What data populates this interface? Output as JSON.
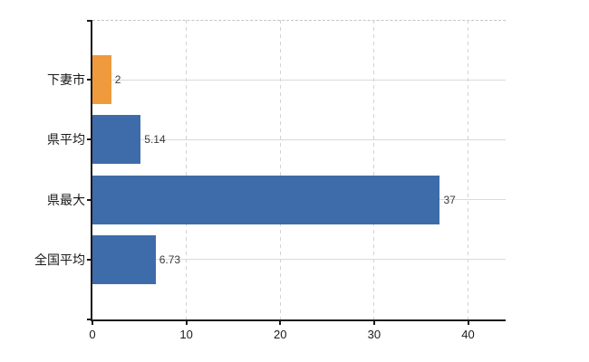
{
  "chart_data": {
    "type": "bar",
    "orientation": "horizontal",
    "title": "",
    "xlabel": "",
    "ylabel": "",
    "categories": [
      "下妻市",
      "県平均",
      "県最大",
      "全国平均"
    ],
    "values": [
      2,
      5.14,
      37,
      6.73
    ],
    "value_labels": [
      "2",
      "5.14",
      "37",
      "6.73"
    ],
    "bar_colors": [
      "#ee9a3d",
      "#3e6caa",
      "#3e6caa",
      "#3e6caa"
    ],
    "xlim": [
      0,
      44
    ],
    "xticks": [
      0,
      10,
      20,
      30,
      40
    ],
    "xtick_labels": [
      "0",
      "10",
      "20",
      "30",
      "40"
    ],
    "grid": {
      "vertical": "dashed",
      "horizontal": "solid",
      "top_border": "dashed"
    },
    "legend": null
  },
  "colors": {
    "background": "#ffffff",
    "bar_blue": "#3e6caa",
    "bar_orange": "#ee9a3d",
    "axis": "#1a1a1a",
    "grid_horizontal": "#d8dcd4",
    "grid_vertical": "#d2d2d2",
    "top_border": "#c4c4c4",
    "value_label": "#3a3a3a",
    "tick_label": "#1a1a1a"
  }
}
